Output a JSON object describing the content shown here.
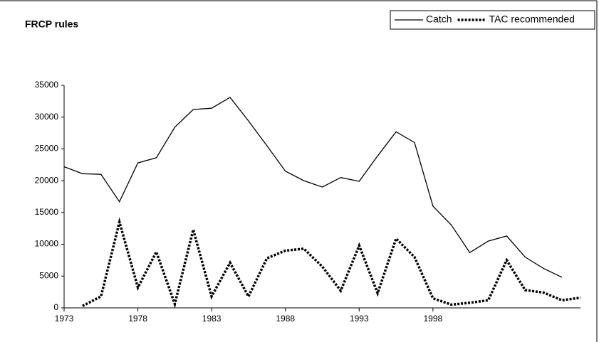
{
  "chart_data": {
    "type": "line",
    "title": "FRCP rules",
    "categories": [
      "1973",
      null,
      null,
      null,
      "1978",
      null,
      null,
      null,
      "1983",
      null,
      null,
      null,
      "1988",
      null,
      null,
      null,
      "1993",
      null,
      null,
      null,
      "1998",
      null,
      null,
      null,
      null,
      null,
      null,
      null,
      null
    ],
    "series": [
      {
        "name": "Catch",
        "color": "#000000",
        "dash": "solid",
        "values": [
          22200,
          21100,
          21000,
          16700,
          22800,
          23600,
          28400,
          31200,
          31400,
          33100,
          29400,
          25500,
          21500,
          20000,
          19000,
          20500,
          19900,
          23900,
          27700,
          26000,
          16000,
          13000,
          8700,
          10500,
          11300,
          8000,
          6200,
          4800,
          null
        ]
      },
      {
        "name": "TAC recommended",
        "color": "#000000",
        "dash": "dotted",
        "values": [
          null,
          300,
          1800,
          13500,
          3200,
          8800,
          600,
          12300,
          1800,
          7100,
          1800,
          7800,
          9000,
          9300,
          6500,
          2700,
          9800,
          2300,
          10900,
          8000,
          1500,
          500,
          800,
          1200,
          7500,
          2800,
          2400,
          1200,
          1600
        ]
      }
    ],
    "ylim": [
      0,
      35000
    ],
    "yticks": [
      0,
      5000,
      10000,
      15000,
      20000,
      25000,
      30000,
      35000
    ],
    "legend": "top-right"
  }
}
